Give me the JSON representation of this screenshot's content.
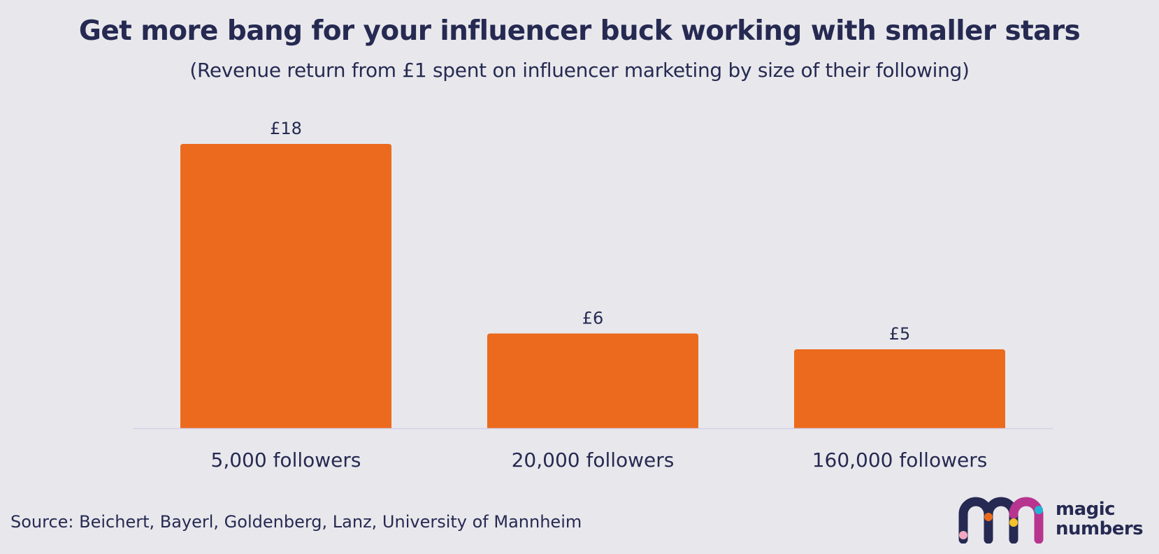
{
  "header": {
    "title": "Get more bang for your influencer buck working with smaller stars",
    "subtitle": "(Revenue return from £1 spent on influencer marketing by size of their following)"
  },
  "footer": {
    "source": "Source: Beichert, Bayerl, Goldenberg, Lanz, University of Mannheim"
  },
  "brand": {
    "name_line1": "magic",
    "name_line2": "numbers",
    "colors": {
      "navy": "#262a52",
      "magenta": "#b8358f",
      "orange": "#ec6a1d",
      "yellow": "#f5c228",
      "cyan": "#23b3d6",
      "pink": "#f2a7c1"
    }
  },
  "chart_data": {
    "type": "bar",
    "title": "Get more bang for your influencer buck working with smaller stars",
    "subtitle": "(Revenue return from £1 spent on influencer marketing by size of their following)",
    "xlabel": "",
    "ylabel": "",
    "categories": [
      "5,000 followers",
      "20,000 followers",
      "160,000 followers"
    ],
    "values": [
      18,
      6,
      5
    ],
    "value_labels": [
      "£18",
      "£6",
      "£5"
    ],
    "ylim": [
      0,
      18
    ],
    "grid": false,
    "legend": "none",
    "bar_color": "#ec6a1d",
    "baseline_color": "#d3d0e8",
    "text_color": "#262a52"
  }
}
